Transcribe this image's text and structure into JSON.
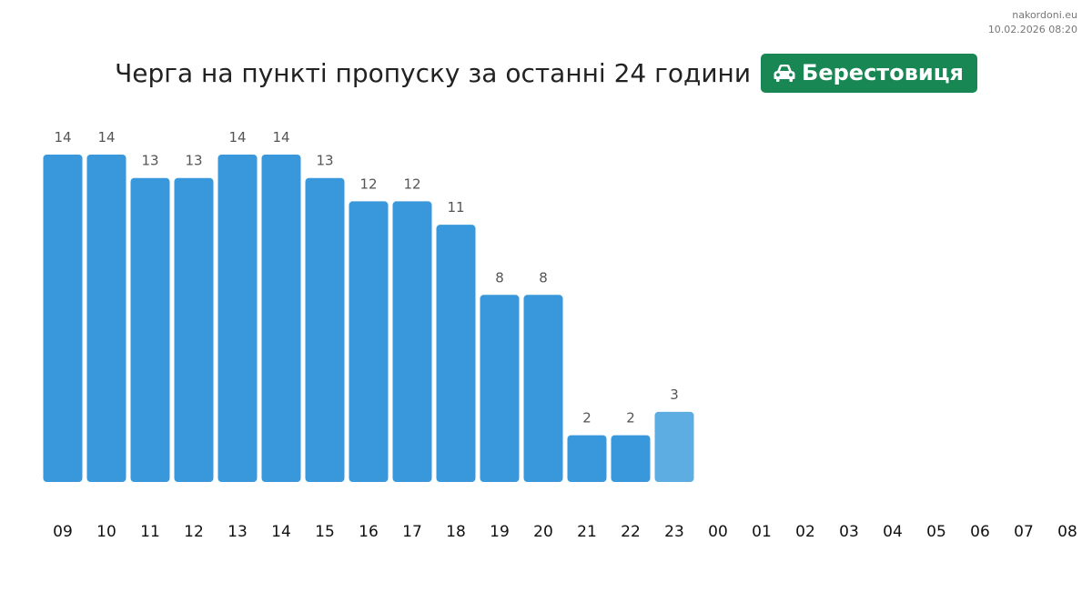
{
  "source": {
    "site": "nakordoni.eu",
    "timestamp": "10.02.2026 08:20"
  },
  "header": {
    "title": "Черга на пункті пропуску за останні 24 години",
    "checkpoint": "Берестовиця",
    "checkpoint_icon": "car-icon"
  },
  "colors": {
    "bar": "#3898db",
    "bar_latest": "#5dade2",
    "badge": "#198754"
  },
  "chart_data": {
    "type": "bar",
    "title": "Черга на пункті пропуску за останні 24 години",
    "xlabel": "",
    "ylabel": "",
    "categories": [
      "09",
      "10",
      "11",
      "12",
      "13",
      "14",
      "15",
      "16",
      "17",
      "18",
      "19",
      "20",
      "21",
      "22",
      "23",
      "00",
      "01",
      "02",
      "03",
      "04",
      "05",
      "06",
      "07",
      "08"
    ],
    "values": [
      14,
      14,
      13,
      13,
      14,
      14,
      13,
      12,
      12,
      11,
      8,
      8,
      2,
      2,
      3,
      null,
      null,
      null,
      null,
      null,
      null,
      null,
      null,
      null
    ],
    "ylim": [
      0,
      14
    ],
    "grid": false,
    "highlight_last_value": true
  }
}
